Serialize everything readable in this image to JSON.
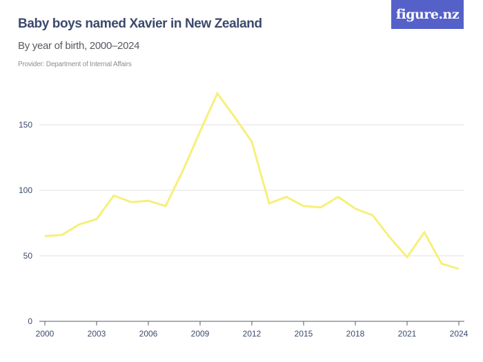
{
  "header": {
    "title": "Baby boys named Xavier in New Zealand",
    "subtitle": "By year of birth, 2000–2024",
    "provider": "Provider: Department of Internal Affairs"
  },
  "logo": {
    "text": "figure.nz",
    "background": "#5561c9"
  },
  "colors": {
    "line": "#f7ef7a",
    "grid": "#e2e2e2",
    "axis": "#555a60",
    "text": "#3b4a6b"
  },
  "chart_data": {
    "type": "line",
    "title": "Baby boys named Xavier in New Zealand",
    "subtitle": "By year of birth, 2000–2024",
    "xlabel": "",
    "ylabel": "",
    "x": [
      2000,
      2001,
      2002,
      2003,
      2004,
      2005,
      2006,
      2007,
      2008,
      2009,
      2010,
      2011,
      2012,
      2013,
      2014,
      2015,
      2016,
      2017,
      2018,
      2019,
      2020,
      2021,
      2022,
      2023,
      2024
    ],
    "series": [
      {
        "name": "Xavier",
        "values": [
          65,
          66,
          74,
          78,
          96,
          91,
          92,
          88,
          115,
          145,
          174,
          156,
          137,
          90,
          95,
          88,
          87,
          95,
          86,
          81,
          64,
          49,
          68,
          44,
          40
        ]
      }
    ],
    "x_ticks": [
      "2000",
      "2003",
      "2006",
      "2009",
      "2012",
      "2015",
      "2018",
      "2021",
      "2024"
    ],
    "y_ticks": [
      "0",
      "50",
      "100",
      "150"
    ],
    "ylim": [
      0,
      150
    ],
    "grid": true,
    "legend": "none"
  }
}
